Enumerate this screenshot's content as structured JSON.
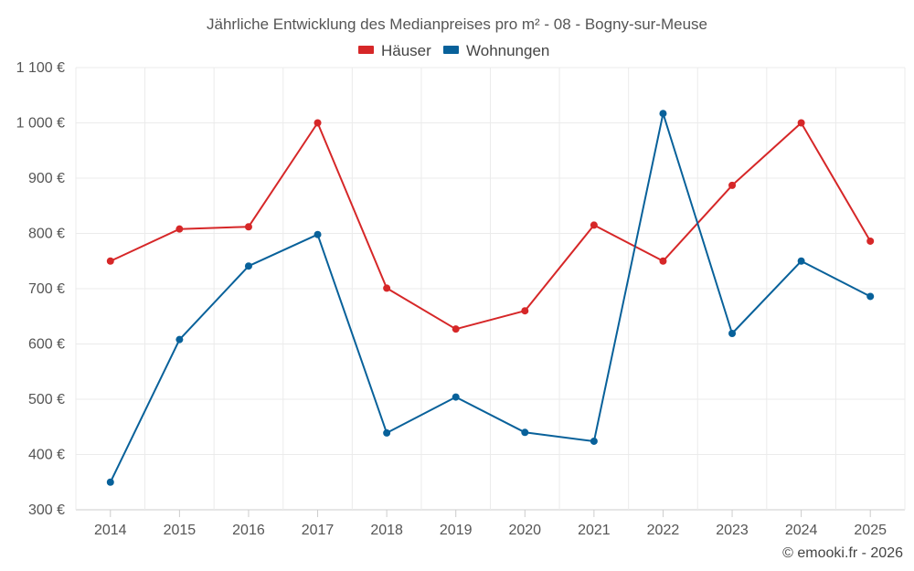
{
  "chart_data": {
    "type": "line",
    "title": "Jährliche Entwicklung des Medianpreises pro m² - 08 - Bogny-sur-Meuse",
    "categories": [
      "2014",
      "2015",
      "2016",
      "2017",
      "2018",
      "2019",
      "2020",
      "2021",
      "2022",
      "2023",
      "2024",
      "2025"
    ],
    "series": [
      {
        "name": "Häuser",
        "color": "#d62728",
        "values": [
          750,
          808,
          812,
          1000,
          701,
          627,
          660,
          815,
          750,
          887,
          1000,
          786
        ]
      },
      {
        "name": "Wohnungen",
        "color": "#08619a",
        "values": [
          350,
          608,
          741,
          798,
          439,
          504,
          440,
          424,
          1017,
          619,
          750,
          686
        ]
      }
    ],
    "ylim": [
      300,
      1100
    ],
    "ytick_values": [
      300,
      400,
      500,
      600,
      700,
      800,
      900,
      1000,
      1100
    ],
    "ytick_labels": [
      "300 €",
      "400 €",
      "500 €",
      "600 €",
      "700 €",
      "800 €",
      "900 €",
      "1 000 €",
      "1 100 €"
    ],
    "xlabel": "",
    "ylabel": "",
    "grid": true,
    "legend_position": "top-center"
  },
  "credit": "© emooki.fr - 2026"
}
